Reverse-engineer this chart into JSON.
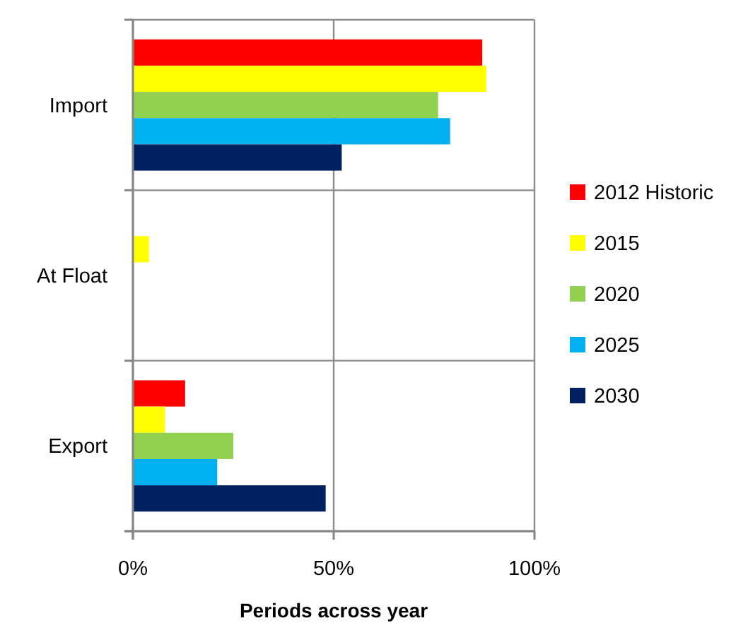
{
  "chart_data": {
    "type": "bar",
    "orientation": "horizontal",
    "categories": [
      "Import",
      "At Float",
      "Export"
    ],
    "series": [
      {
        "name": "2012 Historic",
        "color": "#ff0000",
        "values": [
          87,
          0,
          13
        ]
      },
      {
        "name": "2015",
        "color": "#ffff00",
        "values": [
          88,
          4,
          8
        ]
      },
      {
        "name": "2020",
        "color": "#92d050",
        "values": [
          76,
          0,
          25
        ]
      },
      {
        "name": "2025",
        "color": "#00b0f0",
        "values": [
          79,
          0,
          21
        ]
      },
      {
        "name": "2030",
        "color": "#002060",
        "values": [
          52,
          0,
          48
        ]
      }
    ],
    "xlim": [
      0,
      100
    ],
    "xticks": [
      {
        "value": 0,
        "label": "0%"
      },
      {
        "value": 50,
        "label": "50%"
      },
      {
        "value": 100,
        "label": "100%"
      }
    ],
    "xlabel": "Periods across year",
    "grid": true,
    "legend": "right"
  }
}
